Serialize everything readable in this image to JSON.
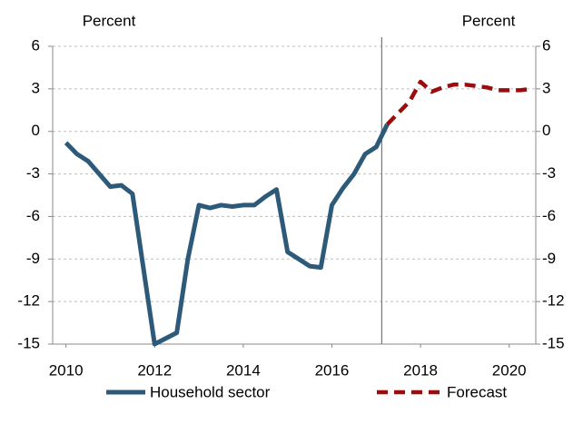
{
  "chart_data": {
    "type": "line",
    "y_label": "Percent",
    "y2_label": "Percent",
    "xlim": [
      2009.7,
      2020.6
    ],
    "xticks": [
      2010,
      2012,
      2014,
      2016,
      2018,
      2020
    ],
    "ylim": [
      -15,
      6
    ],
    "yticks": [
      -15,
      -12,
      -9,
      -6,
      -3,
      0,
      3,
      6
    ],
    "y2lim": [
      -15,
      6
    ],
    "y2ticks": [
      -15,
      -12,
      -9,
      -6,
      -3,
      0,
      3,
      6
    ],
    "grid": true,
    "vline": 2017.125,
    "legend": "bottom",
    "series": [
      {
        "name": "Household sector",
        "color": "#2e5a7a",
        "dash": false,
        "x": [
          2010,
          2010.25,
          2010.5,
          2010.75,
          2011,
          2011.25,
          2011.5,
          2011.75,
          2012,
          2012.25,
          2012.5,
          2012.75,
          2013,
          2013.25,
          2013.5,
          2013.75,
          2014,
          2014.25,
          2014.5,
          2014.75,
          2015,
          2015.25,
          2015.5,
          2015.75,
          2016,
          2016.25,
          2016.5,
          2016.75,
          2017,
          2017.25
        ],
        "values": [
          -0.8,
          -1.6,
          -2.1,
          -3.0,
          -3.9,
          -3.8,
          -4.4,
          -9.7,
          -15,
          -14.6,
          -14.2,
          -9.0,
          -5.2,
          -5.4,
          -5.2,
          -5.3,
          -5.2,
          -5.2,
          -4.6,
          -4.1,
          -8.5,
          -9.0,
          -9.5,
          -9.6,
          -5.2,
          -4.0,
          -3.0,
          -1.6,
          -1.1,
          0.5
        ]
      },
      {
        "name": "Forecast",
        "color": "#9b0d0d",
        "dash": true,
        "x": [
          2017.25,
          2017.5,
          2017.75,
          2018,
          2018.25,
          2018.5,
          2018.75,
          2019,
          2019.25,
          2019.5,
          2019.75,
          2020,
          2020.25,
          2020.5
        ],
        "values": [
          0.5,
          1.3,
          2.1,
          3.5,
          2.8,
          3.1,
          3.3,
          3.3,
          3.2,
          3.1,
          2.9,
          2.9,
          2.9,
          3.0
        ]
      }
    ]
  }
}
